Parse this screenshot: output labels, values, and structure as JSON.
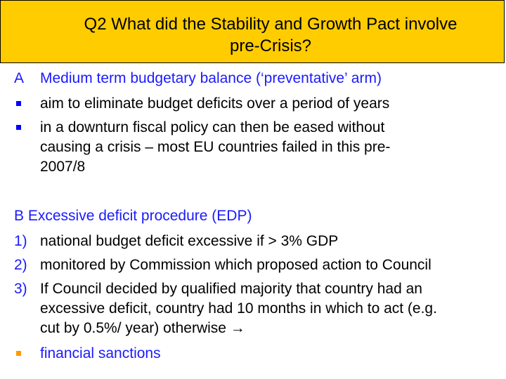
{
  "title": {
    "line1": "Q2 What did the Stability and Growth Pact involve",
    "line2": "pre-Crisis?"
  },
  "section_a": {
    "marker": "A",
    "heading": "Medium term budgetary balance (‘preventative’ arm)",
    "bullets": [
      {
        "lines": [
          "aim to eliminate budget deficits over a period of years"
        ]
      },
      {
        "lines": [
          "in a downturn fiscal policy can then be eased without",
          "causing a crisis – most EU countries failed in this pre-",
          "2007/8"
        ]
      }
    ]
  },
  "section_b": {
    "heading": "B Excessive deficit procedure (EDP)",
    "items": [
      {
        "marker": "1)",
        "lines": [
          "national budget deficit excessive if > 3% GDP"
        ]
      },
      {
        "marker": "2)",
        "lines": [
          "monitored by Commission which proposed action to Council"
        ]
      },
      {
        "marker": "3)",
        "lines": [
          "If Council decided by qualified majority that country had an",
          "excessive deficit, country had 10 months in which to act (e.g.",
          "cut by 0.5%/ year) otherwise →"
        ]
      }
    ],
    "final_bullet": "financial sanctions"
  },
  "colors": {
    "title_bg": "#ffcc00",
    "heading_blue": "#1a1aff",
    "bullet_blue": "#0000ff",
    "bullet_orange": "#ff9900"
  }
}
